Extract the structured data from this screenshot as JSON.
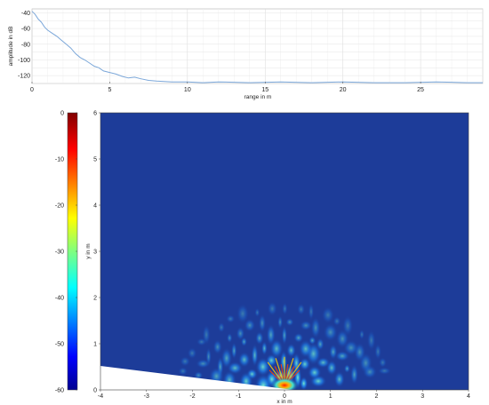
{
  "chart_data": [
    {
      "type": "line",
      "title": "",
      "xlabel": "range in m",
      "ylabel": "amplitude in dB",
      "xlim": [
        0,
        29
      ],
      "ylim": [
        -130,
        -35
      ],
      "x_ticks": [
        "0",
        "5",
        "10",
        "15",
        "20",
        "25"
      ],
      "y_ticks": [
        "-40",
        "-60",
        "-80",
        "-100",
        "-120"
      ],
      "grid": true,
      "series": [
        {
          "color": "#7ba7d9",
          "x": [
            0,
            0.2,
            0.4,
            0.6,
            0.8,
            1.0,
            1.3,
            1.6,
            1.9,
            2.2,
            2.5,
            2.8,
            3.1,
            3.4,
            3.7,
            4.0,
            4.3,
            4.6,
            5.0,
            5.4,
            5.8,
            6.2,
            6.6,
            7.0,
            7.5,
            8.0,
            9.0,
            10.0,
            11.0,
            12.0,
            14.0,
            16.0,
            18.0,
            20.0,
            22.0,
            24.0,
            26.0,
            28.0,
            29.0
          ],
          "values": [
            -38,
            -42,
            -48,
            -52,
            -58,
            -62,
            -66,
            -70,
            -75,
            -80,
            -85,
            -92,
            -97,
            -100,
            -104,
            -108,
            -110,
            -114,
            -116,
            -118,
            -121,
            -123,
            -122,
            -124,
            -126,
            -127,
            -128,
            -128,
            -129,
            -128,
            -129,
            -128,
            -129,
            -128,
            -129,
            -129,
            -128,
            -129,
            -129
          ]
        }
      ]
    },
    {
      "type": "heatmap",
      "title": "",
      "xlabel": "x in m",
      "ylabel": "y in m",
      "xlim": [
        -4,
        4
      ],
      "ylim": [
        0,
        6
      ],
      "x_ticks": [
        "-4",
        "-3",
        "-2",
        "-1",
        "0",
        "1",
        "2",
        "3",
        "4"
      ],
      "y_ticks": [
        "0",
        "1",
        "2",
        "3",
        "4",
        "5",
        "6"
      ],
      "colorbar": {
        "min": -60,
        "max": 0,
        "ticks": [
          "0",
          "-10",
          "-20",
          "-30",
          "-40",
          "-50",
          "-60"
        ]
      },
      "background_level": -58,
      "peak": {
        "x": 0,
        "y": 0.1,
        "level": 0
      },
      "blob_levels": [
        -40,
        -45,
        -30,
        -50,
        -35
      ]
    }
  ]
}
